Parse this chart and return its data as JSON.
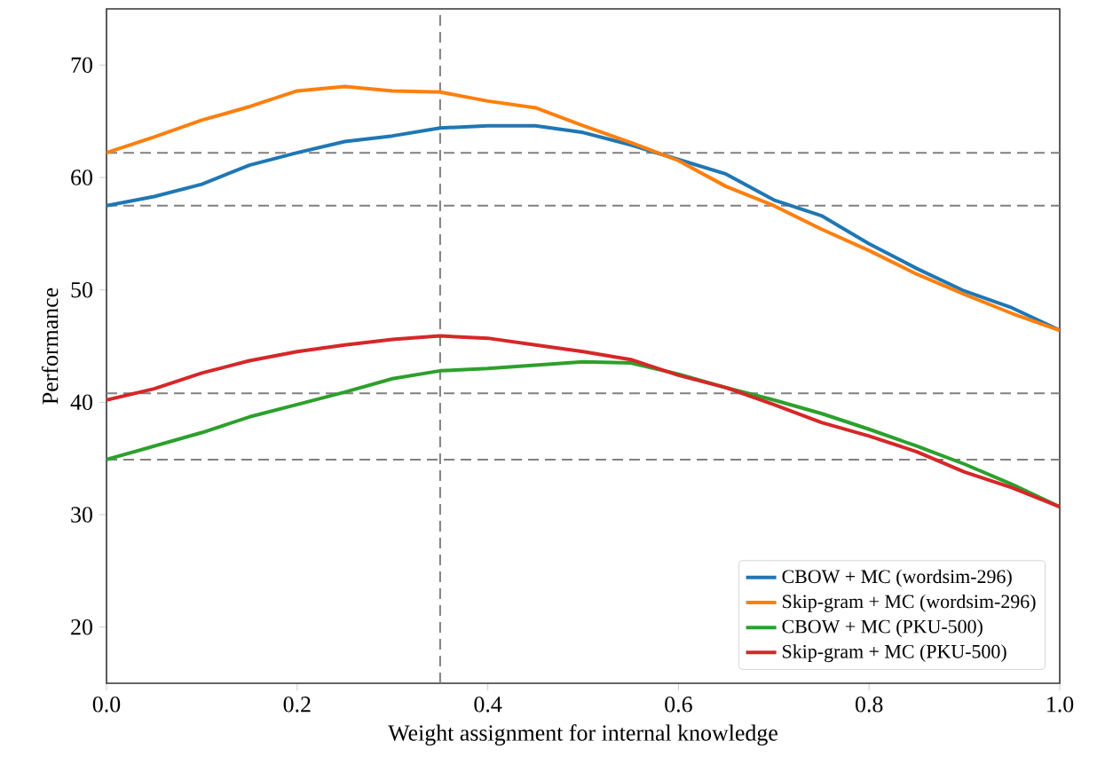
{
  "chart_data": {
    "type": "line",
    "xlabel": "Weight assignment for internal knowledge",
    "ylabel": "Performance",
    "x": [
      0,
      0.05,
      0.1,
      0.15,
      0.2,
      0.25,
      0.3,
      0.35,
      0.4,
      0.45,
      0.5,
      0.55,
      0.6,
      0.65,
      0.7,
      0.75,
      0.8,
      0.85,
      0.9,
      0.95,
      1.0
    ],
    "series": [
      {
        "name": "CBOW + MC (wordsim-296)",
        "color": "#1f77b4",
        "values": [
          57.5,
          58.3,
          59.4,
          61.1,
          62.2,
          63.2,
          63.7,
          64.4,
          64.6,
          64.6,
          64.0,
          62.9,
          61.6,
          60.3,
          58.0,
          56.6,
          54.1,
          51.9,
          49.9,
          48.4,
          46.4
        ]
      },
      {
        "name": "Skip-gram + MC (wordsim-296)",
        "color": "#ff7f0e",
        "values": [
          62.2,
          63.6,
          65.1,
          66.3,
          67.7,
          68.1,
          67.7,
          67.6,
          66.8,
          66.2,
          64.6,
          63.1,
          61.5,
          59.2,
          57.5,
          55.4,
          53.5,
          51.4,
          49.6,
          47.9,
          46.4
        ]
      },
      {
        "name": "CBOW + MC (PKU-500)",
        "color": "#2ca02c",
        "values": [
          34.9,
          36.1,
          37.3,
          38.7,
          39.8,
          40.9,
          42.1,
          42.8,
          43.0,
          43.3,
          43.6,
          43.5,
          42.5,
          41.3,
          40.2,
          39.0,
          37.6,
          36.1,
          34.5,
          32.7,
          30.7
        ]
      },
      {
        "name": "Skip-gram + MC (PKU-500)",
        "color": "#d62728",
        "values": [
          40.2,
          41.2,
          42.6,
          43.7,
          44.5,
          45.1,
          45.6,
          45.9,
          45.7,
          45.1,
          44.5,
          43.8,
          42.4,
          41.3,
          39.8,
          38.2,
          37.0,
          35.6,
          33.8,
          32.4,
          30.7
        ]
      }
    ],
    "xlim": [
      0,
      1
    ],
    "ylim": [
      15,
      75
    ],
    "xticks": [
      {
        "value": 0,
        "label": "0.0"
      },
      {
        "value": 0.2,
        "label": "0.2"
      },
      {
        "value": 0.4,
        "label": "0.4"
      },
      {
        "value": 0.6,
        "label": "0.6"
      },
      {
        "value": 0.8,
        "label": "0.8"
      },
      {
        "value": 1.0,
        "label": "1.0"
      }
    ],
    "yticks": [
      20,
      30,
      40,
      50,
      60,
      70
    ],
    "ref_lines": [
      {
        "axis": "x",
        "value": 0.35,
        "color": "#808080",
        "line_style": "dashed"
      },
      {
        "axis": "y",
        "value": 62.2,
        "color": "#808080",
        "line_style": "dashed"
      },
      {
        "axis": "y",
        "value": 57.5,
        "color": "#808080",
        "line_style": "dashed"
      },
      {
        "axis": "y",
        "value": 40.8,
        "color": "#808080",
        "line_style": "dashed"
      },
      {
        "axis": "y",
        "value": 34.9,
        "color": "#808080",
        "line_style": "dashed"
      }
    ],
    "legend": "bottom right"
  }
}
